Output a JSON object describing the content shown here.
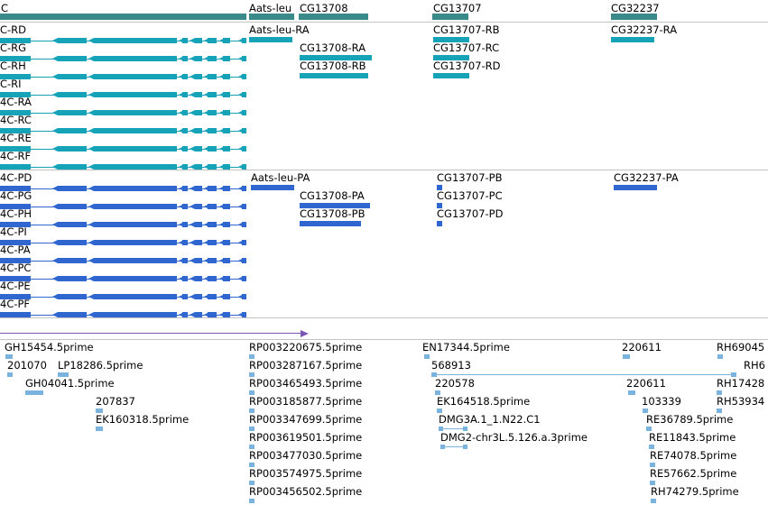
{
  "colors": {
    "gene": "#3b8a8a",
    "transcript": "#16a3b8",
    "protein": "#2f66cf",
    "est": "#7ab4de",
    "arrow": "#7d55b6",
    "separator": "#c4c4c4"
  },
  "genes": {
    "left": "C",
    "aats": "Aats-leu",
    "cg13708": "CG13708",
    "cg13707": "CG13707",
    "cg32237": "CG32237"
  },
  "transcripts": {
    "left": [
      "C-RD",
      "C-RG",
      "C-RH",
      "C-RI",
      "4C-RA",
      "4C-RC",
      "4C-RE",
      "4C-RF"
    ],
    "aats": "Aats-leu-RA",
    "cg13708": [
      "CG13708-RA",
      "CG13708-RB"
    ],
    "cg13707": [
      "CG13707-RB",
      "CG13707-RC",
      "CG13707-RD"
    ],
    "cg32237": "CG32237-RA"
  },
  "proteins": {
    "left": [
      "4C-PD",
      "4C-PG",
      "4C-PH",
      "4C-PI",
      "4C-PA",
      "4C-PC",
      "4C-PE",
      "4C-PF"
    ],
    "aats": "Aats-leu-PA",
    "cg13708": [
      "CG13708-PA",
      "CG13708-PB"
    ],
    "cg13707": [
      "CG13707-PB",
      "CG13707-PC",
      "CG13707-PD"
    ],
    "cg32237": "CG32237-PA"
  },
  "ests": {
    "col1": [
      "GH15454.5prime",
      "201070",
      "LP18286.5prime",
      "GH04041.5prime",
      "207837",
      "EK160318.5prime"
    ],
    "col2": [
      "RP003220675.5prime",
      "RP003287167.5prime",
      "RP003465493.5prime",
      "RP003185877.5prime",
      "RP003347699.5prime",
      "RP003619501.5prime",
      "RP003477030.5prime",
      "RP003574975.5prime",
      "RP003456502.5prime"
    ],
    "col3": [
      "EN17344.5prime",
      "568913",
      "220578",
      "EK164518.5prime",
      "DMG3A.1_1.N22.C1",
      "DMG2-chr3L.5.126.a.3prime"
    ],
    "col4": [
      "220611",
      "220611",
      "103339",
      "RE36789.5prime",
      "RE11843.5prime",
      "RE74078.5prime",
      "RE57662.5prime",
      "RH74279.5prime"
    ],
    "col5": [
      "RH69045",
      "RH6",
      "RH17428",
      "RH53934"
    ]
  }
}
